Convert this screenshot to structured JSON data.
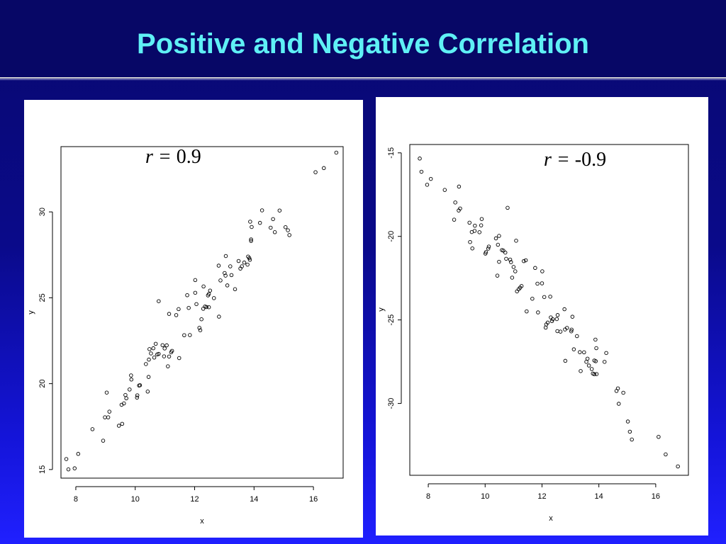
{
  "slide": {
    "title": "Positive and Negative Correlation"
  },
  "chart_data": [
    {
      "type": "scatter",
      "annotation_prefix": "r = ",
      "annotation_value": "0.9",
      "xlabel": "x",
      "ylabel": "y",
      "xlim": [
        7.5,
        17.0
      ],
      "ylim": [
        14.5,
        33.8
      ],
      "xticks": [
        8,
        10,
        12,
        14,
        16
      ],
      "yticks": [
        15,
        20,
        25,
        30
      ],
      "points": [
        [
          7.68,
          15.61
        ],
        [
          7.75,
          15.01
        ],
        [
          7.96,
          15.07
        ],
        [
          8.08,
          15.91
        ],
        [
          8.56,
          17.35
        ],
        [
          8.92,
          16.68
        ],
        [
          8.98,
          18.04
        ],
        [
          9.04,
          19.48
        ],
        [
          9.09,
          18.04
        ],
        [
          9.13,
          18.37
        ],
        [
          9.45,
          17.55
        ],
        [
          9.54,
          18.77
        ],
        [
          9.56,
          17.66
        ],
        [
          9.62,
          18.85
        ],
        [
          9.67,
          19.34
        ],
        [
          9.7,
          19.15
        ],
        [
          9.81,
          19.66
        ],
        [
          9.86,
          20.48
        ],
        [
          9.87,
          20.24
        ],
        [
          10.06,
          19.19
        ],
        [
          10.07,
          19.32
        ],
        [
          10.13,
          19.89
        ],
        [
          10.16,
          19.91
        ],
        [
          10.36,
          21.14
        ],
        [
          10.42,
          19.54
        ],
        [
          10.45,
          20.39
        ],
        [
          10.46,
          21.4
        ],
        [
          10.48,
          22.01
        ],
        [
          10.53,
          21.76
        ],
        [
          10.61,
          22.06
        ],
        [
          10.64,
          21.52
        ],
        [
          10.69,
          22.32
        ],
        [
          10.74,
          21.7
        ],
        [
          10.79,
          21.73
        ],
        [
          10.79,
          24.8
        ],
        [
          10.92,
          22.24
        ],
        [
          10.97,
          21.59
        ],
        [
          10.99,
          22.05
        ],
        [
          11.06,
          22.23
        ],
        [
          11.1,
          21.01
        ],
        [
          11.14,
          24.06
        ],
        [
          11.14,
          21.58
        ],
        [
          11.21,
          21.83
        ],
        [
          11.24,
          21.91
        ],
        [
          11.38,
          23.99
        ],
        [
          11.46,
          24.34
        ],
        [
          11.48,
          21.49
        ],
        [
          11.65,
          22.82
        ],
        [
          11.75,
          25.15
        ],
        [
          11.8,
          24.41
        ],
        [
          11.84,
          22.83
        ],
        [
          12.02,
          25.29
        ],
        [
          12.02,
          26.03
        ],
        [
          12.06,
          24.63
        ],
        [
          12.16,
          23.25
        ],
        [
          12.19,
          23.11
        ],
        [
          12.23,
          23.75
        ],
        [
          12.29,
          24.36
        ],
        [
          12.3,
          25.66
        ],
        [
          12.35,
          24.49
        ],
        [
          12.4,
          24.46
        ],
        [
          12.45,
          25.14
        ],
        [
          12.48,
          24.45
        ],
        [
          12.48,
          25.22
        ],
        [
          12.52,
          25.42
        ],
        [
          12.65,
          24.98
        ],
        [
          12.81,
          26.87
        ],
        [
          12.82,
          23.9
        ],
        [
          12.87,
          26.01
        ],
        [
          13.01,
          26.44
        ],
        [
          13.04,
          26.29
        ],
        [
          13.05,
          27.43
        ],
        [
          13.1,
          25.72
        ],
        [
          13.2,
          26.83
        ],
        [
          13.24,
          26.32
        ],
        [
          13.36,
          25.5
        ],
        [
          13.48,
          27.14
        ],
        [
          13.54,
          26.7
        ],
        [
          13.59,
          26.83
        ],
        [
          13.67,
          27.05
        ],
        [
          13.78,
          26.93
        ],
        [
          13.8,
          27.4
        ],
        [
          13.84,
          27.31
        ],
        [
          13.86,
          27.21
        ],
        [
          13.87,
          29.43
        ],
        [
          13.9,
          28.31
        ],
        [
          13.9,
          28.4
        ],
        [
          13.92,
          29.12
        ],
        [
          14.2,
          29.36
        ],
        [
          14.27,
          30.09
        ],
        [
          14.56,
          29.08
        ],
        [
          14.64,
          29.58
        ],
        [
          14.7,
          28.82
        ],
        [
          14.86,
          30.08
        ],
        [
          15.06,
          29.11
        ],
        [
          15.14,
          28.93
        ],
        [
          15.19,
          28.65
        ],
        [
          16.07,
          32.31
        ],
        [
          16.35,
          32.55
        ],
        [
          16.77,
          33.45
        ]
      ]
    },
    {
      "type": "scatter",
      "annotation_prefix": "r = ",
      "annotation_value": "-0.9",
      "xlabel": "x",
      "ylabel": "y",
      "xlim": [
        7.35,
        17.15
      ],
      "ylim": [
        -34.3,
        -14.5
      ],
      "xticks": [
        8,
        10,
        12,
        14,
        16
      ],
      "yticks": [
        -15,
        -20,
        -25,
        -30
      ],
      "points": [
        [
          7.7,
          -15.34
        ],
        [
          7.76,
          -16.13
        ],
        [
          7.96,
          -16.91
        ],
        [
          8.09,
          -16.56
        ],
        [
          8.58,
          -17.22
        ],
        [
          8.91,
          -19.0
        ],
        [
          8.95,
          -17.97
        ],
        [
          9.07,
          -18.45
        ],
        [
          9.08,
          -17.02
        ],
        [
          9.12,
          -18.33
        ],
        [
          9.45,
          -19.18
        ],
        [
          9.47,
          -20.34
        ],
        [
          9.53,
          -19.74
        ],
        [
          9.55,
          -20.72
        ],
        [
          9.63,
          -19.67
        ],
        [
          9.64,
          -19.36
        ],
        [
          9.8,
          -19.75
        ],
        [
          9.86,
          -19.34
        ],
        [
          9.88,
          -18.96
        ],
        [
          10.01,
          -21.03
        ],
        [
          10.03,
          -20.94
        ],
        [
          10.11,
          -20.73
        ],
        [
          10.13,
          -20.61
        ],
        [
          10.38,
          -20.12
        ],
        [
          10.43,
          -22.35
        ],
        [
          10.45,
          -20.5
        ],
        [
          10.49,
          -21.52
        ],
        [
          10.49,
          -19.97
        ],
        [
          10.59,
          -20.82
        ],
        [
          10.64,
          -20.85
        ],
        [
          10.71,
          -20.97
        ],
        [
          10.74,
          -21.34
        ],
        [
          10.79,
          -18.29
        ],
        [
          10.88,
          -21.39
        ],
        [
          10.91,
          -21.54
        ],
        [
          10.95,
          -22.47
        ],
        [
          11.0,
          -21.83
        ],
        [
          11.06,
          -22.09
        ],
        [
          11.09,
          -20.26
        ],
        [
          11.12,
          -23.29
        ],
        [
          11.18,
          -23.16
        ],
        [
          11.23,
          -23.07
        ],
        [
          11.28,
          -22.97
        ],
        [
          11.36,
          -21.48
        ],
        [
          11.43,
          -21.43
        ],
        [
          11.46,
          -24.49
        ],
        [
          11.66,
          -23.73
        ],
        [
          11.76,
          -21.89
        ],
        [
          11.84,
          -22.83
        ],
        [
          11.86,
          -24.55
        ],
        [
          12.0,
          -22.81
        ],
        [
          12.01,
          -22.09
        ],
        [
          12.08,
          -23.63
        ],
        [
          12.13,
          -25.46
        ],
        [
          12.15,
          -25.27
        ],
        [
          12.2,
          -25.16
        ],
        [
          12.29,
          -23.61
        ],
        [
          12.31,
          -24.85
        ],
        [
          12.35,
          -25.07
        ],
        [
          12.38,
          -24.96
        ],
        [
          12.52,
          -24.95
        ],
        [
          12.54,
          -25.67
        ],
        [
          12.55,
          -24.71
        ],
        [
          12.65,
          -25.7
        ],
        [
          12.79,
          -24.36
        ],
        [
          12.81,
          -25.57
        ],
        [
          12.82,
          -27.45
        ],
        [
          12.88,
          -25.48
        ],
        [
          13.03,
          -25.68
        ],
        [
          13.04,
          -25.58
        ],
        [
          13.07,
          -24.81
        ],
        [
          13.12,
          -26.76
        ],
        [
          13.23,
          -25.97
        ],
        [
          13.33,
          -26.93
        ],
        [
          13.36,
          -28.06
        ],
        [
          13.48,
          -26.94
        ],
        [
          13.56,
          -27.51
        ],
        [
          13.6,
          -27.32
        ],
        [
          13.65,
          -27.73
        ],
        [
          13.75,
          -27.94
        ],
        [
          13.79,
          -28.21
        ],
        [
          13.84,
          -28.25
        ],
        [
          13.84,
          -27.43
        ],
        [
          13.88,
          -26.18
        ],
        [
          13.89,
          -27.47
        ],
        [
          13.91,
          -26.69
        ],
        [
          13.92,
          -28.24
        ],
        [
          14.2,
          -27.51
        ],
        [
          14.26,
          -26.98
        ],
        [
          14.62,
          -29.25
        ],
        [
          14.67,
          -29.1
        ],
        [
          14.7,
          -30.02
        ],
        [
          14.86,
          -29.36
        ],
        [
          15.02,
          -31.08
        ],
        [
          15.09,
          -31.69
        ],
        [
          15.16,
          -32.16
        ],
        [
          16.1,
          -32.0
        ],
        [
          16.35,
          -33.05
        ],
        [
          16.78,
          -33.77
        ]
      ]
    }
  ]
}
